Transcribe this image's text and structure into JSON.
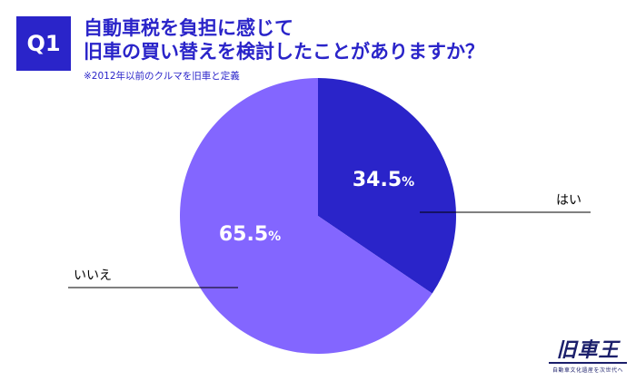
{
  "header": {
    "badge": "Q1",
    "title_line1": "自動車税を負担に感じて",
    "title_line2": "旧車の買い替えを検討したことがありますか？",
    "note": "※2012年以前のクルマを旧車と定義"
  },
  "chart_data": {
    "type": "pie",
    "slices": [
      {
        "label": "はい",
        "value": 34.5,
        "value_text": "34.5",
        "color": "#2a24c9"
      },
      {
        "label": "いいえ",
        "value": 65.5,
        "value_text": "65.5",
        "color": "#8366ff"
      }
    ],
    "unit": "%",
    "start_angle": "12 o'clock",
    "direction": "clockwise"
  },
  "logo": {
    "main": "旧車王",
    "sub": "自動車文化遺産を次世代へ"
  }
}
